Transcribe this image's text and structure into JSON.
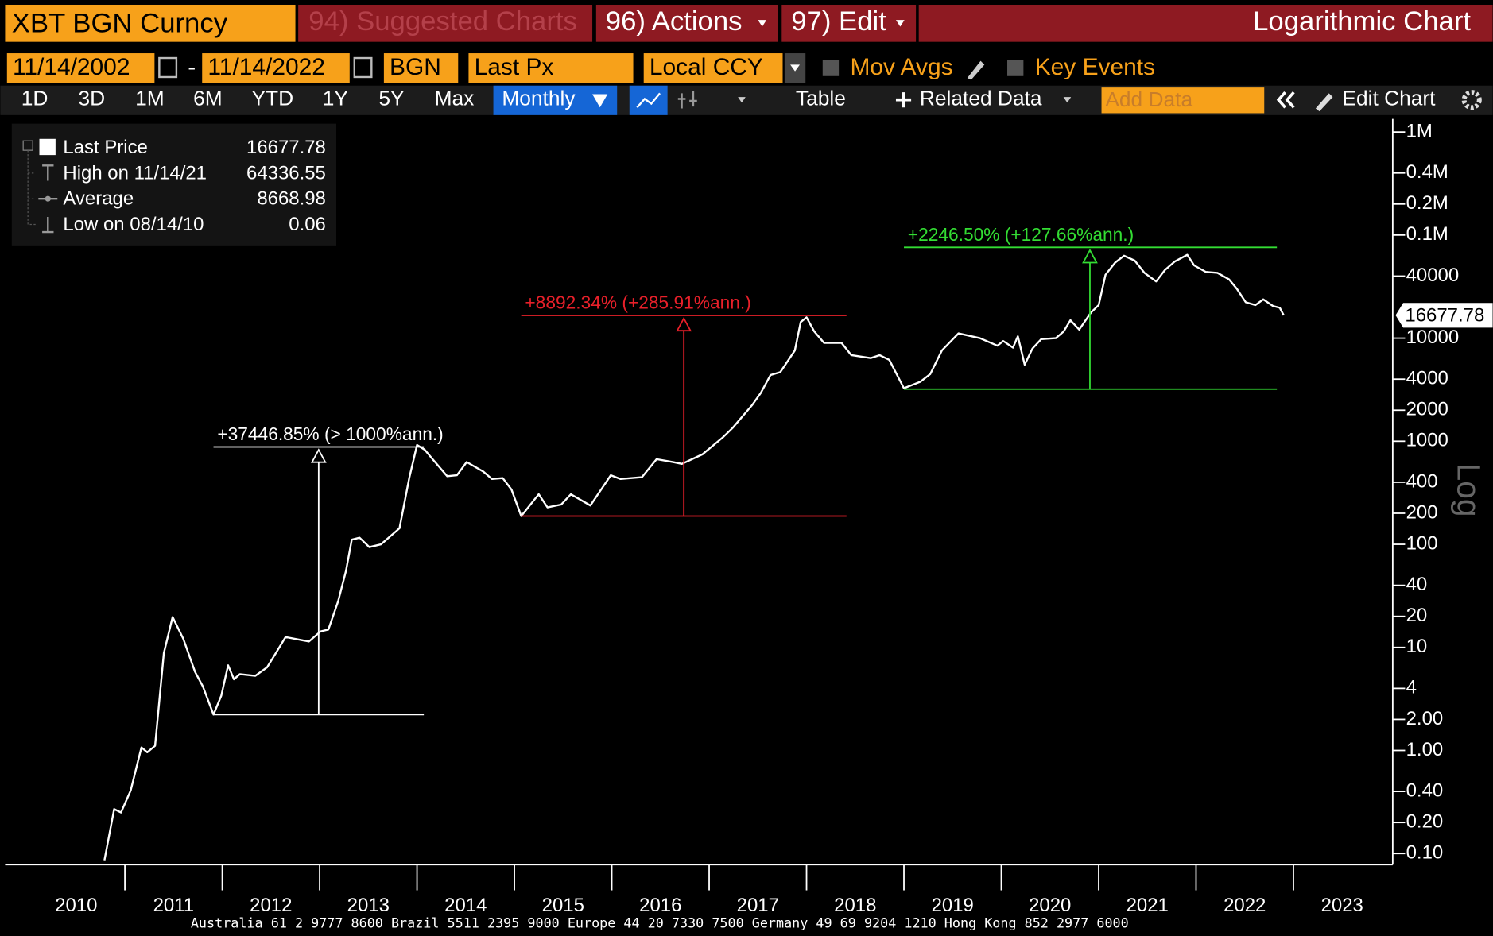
{
  "toolbar": {
    "security": "XBT BGN Curncy",
    "suggested": "94) Suggested Charts",
    "actions": "96) Actions",
    "edit": "97) Edit",
    "chart_kind": "Logarithmic Chart",
    "start_date": "11/14/2002",
    "date_separator": "-",
    "end_date": "11/14/2022",
    "source": "BGN",
    "field": "Last Px",
    "currency": "Local CCY",
    "mov_avgs": "Mov Avgs",
    "key_events": "Key Events",
    "periods": [
      "1D",
      "3D",
      "1M",
      "6M",
      "YTD",
      "1Y",
      "5Y",
      "Max"
    ],
    "frequency": "Monthly",
    "table": "Table",
    "related_data": "Related Data",
    "add_data": "Add Data",
    "edit_chart": "Edit Chart"
  },
  "chart_data": {
    "type": "line",
    "log_scale": true,
    "scale_label": "Log",
    "xlim": [
      2009.77,
      2024.0
    ],
    "xticks": [
      2010,
      2011,
      2012,
      2013,
      2014,
      2015,
      2016,
      2017,
      2018,
      2019,
      2020,
      2021,
      2022,
      2023
    ],
    "ylim": [
      0.078,
      1340000
    ],
    "yticks": [
      {
        "value": 1000000,
        "label": "1M"
      },
      {
        "value": 400000,
        "label": "0.4M"
      },
      {
        "value": 200000,
        "label": "0.2M"
      },
      {
        "value": 100000,
        "label": "0.1M"
      },
      40000,
      10000,
      4000,
      2000,
      1000,
      400,
      200,
      100,
      40,
      20,
      10,
      4,
      {
        "value": 2,
        "label": "2.00"
      },
      {
        "value": 1,
        "label": "1.00"
      },
      {
        "value": 0.4,
        "label": "0.40"
      },
      {
        "value": 0.2,
        "label": "0.20"
      },
      {
        "value": 0.1,
        "label": "0.10"
      }
    ],
    "last_price": 16677.78,
    "series": [
      {
        "name": "Last Price",
        "color": "#ffffff",
        "x": [
          2010.79,
          2010.89,
          2010.96,
          2011.06,
          2011.17,
          2011.23,
          2011.31,
          2011.4,
          2011.49,
          2011.6,
          2011.72,
          2011.8,
          2011.91,
          2011.99,
          2012.06,
          2012.12,
          2012.18,
          2012.34,
          2012.46,
          2012.55,
          2012.65,
          2012.89,
          2013.01,
          2013.09,
          2013.19,
          2013.27,
          2013.33,
          2013.41,
          2013.51,
          2013.63,
          2013.82,
          2013.92,
          2014.0,
          2014.08,
          2014.16,
          2014.31,
          2014.41,
          2014.51,
          2014.68,
          2014.77,
          2014.88,
          2014.97,
          2015.07,
          2015.25,
          2015.34,
          2015.48,
          2015.58,
          2015.78,
          2015.99,
          2016.09,
          2016.31,
          2016.46,
          2016.63,
          2016.72,
          2016.93,
          2017.14,
          2017.24,
          2017.44,
          2017.53,
          2017.63,
          2017.73,
          2017.88,
          2017.94,
          2018.0,
          2018.08,
          2018.18,
          2018.36,
          2018.46,
          2018.66,
          2018.75,
          2018.85,
          2019.0,
          2019.17,
          2019.27,
          2019.39,
          2019.56,
          2019.78,
          2019.96,
          2020.02,
          2020.12,
          2020.17,
          2020.24,
          2020.32,
          2020.41,
          2020.56,
          2020.64,
          2020.71,
          2020.8,
          2020.92,
          2021.0,
          2021.07,
          2021.17,
          2021.26,
          2021.37,
          2021.47,
          2021.59,
          2021.68,
          2021.78,
          2021.91,
          2021.98,
          2022.1,
          2022.22,
          2022.34,
          2022.42,
          2022.51,
          2022.61,
          2022.69,
          2022.79,
          2022.86,
          2022.9
        ],
        "values": [
          0.086,
          0.27,
          0.25,
          0.41,
          1.07,
          0.96,
          1.11,
          8.8,
          19.7,
          12.1,
          5.8,
          4.2,
          2.23,
          3.4,
          6.7,
          4.9,
          5.5,
          5.3,
          6.4,
          8.8,
          12.6,
          11.4,
          14.3,
          14.9,
          28,
          55,
          111,
          116,
          94,
          100,
          143,
          439,
          919,
          826,
          670,
          458,
          468,
          628,
          508,
          430,
          439,
          340,
          188,
          306,
          228,
          243,
          306,
          238,
          468,
          430,
          448,
          670,
          628,
          603,
          745,
          1089,
          1343,
          2234,
          2938,
          4385,
          4677,
          7600,
          14320,
          15920,
          11590,
          8990,
          8990,
          6840,
          6410,
          6840,
          6150,
          3266,
          3784,
          4477,
          7600,
          11120,
          10000,
          8450,
          9380,
          8090,
          10430,
          5530,
          7930,
          9790,
          10000,
          11590,
          14930,
          12100,
          17700,
          20940,
          41200,
          54200,
          63000,
          56500,
          43000,
          35500,
          45800,
          55300,
          64300,
          50800,
          43900,
          43000,
          37100,
          30000,
          22300,
          20940,
          23800,
          20500,
          19700,
          16678
        ]
      }
    ],
    "legend_stats": [
      {
        "label": "High on 11/14/21",
        "value": 64336.55
      },
      {
        "label": "Average",
        "value": 8668.98
      },
      {
        "label": "Low on 08/14/10",
        "value": 0.06
      }
    ],
    "annotations": [
      {
        "text": "+37446.85% (> 1000%ann.)",
        "color": "#ffffff",
        "x": [
          2011.91,
          2014.07
        ],
        "arrow_x": 2012.99,
        "low": 2.23,
        "high": 880
      },
      {
        "text": "+8892.34% (+285.91%ann.)",
        "color": "#e8202a",
        "x": [
          2015.07,
          2018.41
        ],
        "arrow_x": 2016.74,
        "low": 188,
        "high": 16600
      },
      {
        "text": "+2246.50% (+127.66%ann.)",
        "color": "#33dd33",
        "x": [
          2019.0,
          2022.83
        ],
        "arrow_x": 2020.91,
        "low": 3200,
        "high": 76000
      }
    ]
  },
  "footer": "Australia 61 2 9777 8600 Brazil 5511 2395 9000 Europe 44 20 7330 7500 Germany 49 69 9204 1210 Hong Kong 852 2977 6000"
}
